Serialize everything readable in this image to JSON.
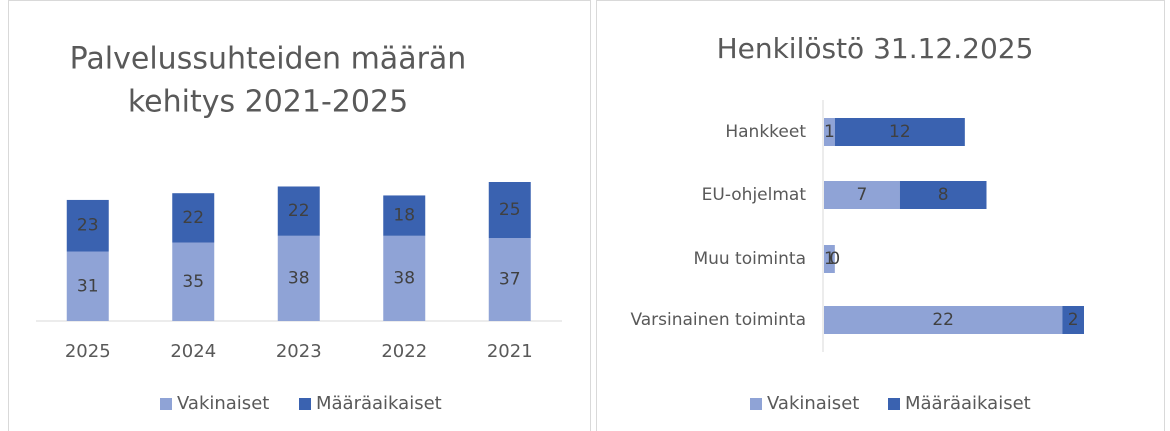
{
  "chart_data": [
    {
      "type": "stacked-bar",
      "title": [
        "Palvelussuhteiden määrän",
        "kehitys 2021-2025"
      ],
      "categories": [
        "2025",
        "2024",
        "2023",
        "2022",
        "2021"
      ],
      "series": [
        {
          "name": "Vakinaiset",
          "color": "#8fa3d6",
          "values": [
            31,
            35,
            38,
            38,
            37
          ]
        },
        {
          "name": "Määräaikaiset",
          "color": "#3a62b0",
          "values": [
            23,
            22,
            22,
            18,
            25
          ]
        }
      ]
    },
    {
      "type": "stacked-hbar",
      "title": [
        "Henkilöstö 31.12.2025"
      ],
      "categories": [
        "Hankkeet",
        "EU-ohjelmat",
        "Muu toiminta",
        "Varsinainen toiminta"
      ],
      "series": [
        {
          "name": "Vakinaiset",
          "color": "#8fa3d6",
          "values": [
            1,
            7,
            1,
            22
          ]
        },
        {
          "name": "Määräaikaiset",
          "color": "#3a62b0",
          "values": [
            12,
            8,
            0,
            2
          ]
        }
      ]
    }
  ]
}
